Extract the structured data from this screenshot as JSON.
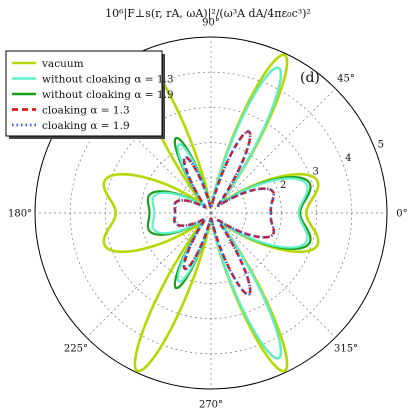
{
  "chart_data": {
    "type": "polar-line",
    "title": "10⁶|F⊥s(r, rA, ωA)|²/(ω³A dA/4πε₀c³)²",
    "panel_label": "(d)",
    "rlim": [
      0,
      5
    ],
    "r_ticks": [
      {
        "value": 1,
        "label": ""
      },
      {
        "value": 2,
        "label": "2"
      },
      {
        "value": 3,
        "label": "3"
      },
      {
        "value": 4,
        "label": "4"
      },
      {
        "value": 5,
        "label": "5"
      }
    ],
    "angle_ticks_deg": [
      0,
      45,
      90,
      135,
      180,
      225,
      270,
      315
    ],
    "angle_tick_labels": [
      "0°",
      "45°",
      "90°",
      "",
      "180°",
      "225°",
      "270°",
      "315°"
    ],
    "grid": true,
    "legend_position": "top-left",
    "series": [
      {
        "name": "vacuum",
        "color": "#b5d900",
        "style": "solid",
        "lobes": [
          {
            "angle": 0,
            "radius": 1.6,
            "width": 12
          },
          {
            "angle": 20,
            "radius": 2.5,
            "width": 11
          },
          {
            "angle": 65,
            "radius": 4.8,
            "width": 7
          },
          {
            "angle": 115,
            "radius": 4.8,
            "width": 7
          },
          {
            "angle": 160,
            "radius": 2.5,
            "width": 11
          },
          {
            "angle": 180,
            "radius": 1.6,
            "width": 12
          },
          {
            "angle": 200,
            "radius": 2.5,
            "width": 11
          },
          {
            "angle": 245,
            "radius": 4.8,
            "width": 7
          },
          {
            "angle": 295,
            "radius": 4.8,
            "width": 7
          },
          {
            "angle": 340,
            "radius": 2.5,
            "width": 11
          }
        ]
      },
      {
        "name": "without cloaking α = 1.3",
        "color": "#5ff0c8",
        "style": "solid",
        "lobes": [
          {
            "angle": 0,
            "radius": 1.5,
            "width": 12
          },
          {
            "angle": 20,
            "radius": 2.2,
            "width": 11
          },
          {
            "angle": 65,
            "radius": 4.4,
            "width": 7
          },
          {
            "angle": 115,
            "radius": 2.0,
            "width": 7
          },
          {
            "angle": 160,
            "radius": 1.2,
            "width": 11
          },
          {
            "angle": 180,
            "radius": 1.0,
            "width": 12
          },
          {
            "angle": 200,
            "radius": 1.2,
            "width": 11
          },
          {
            "angle": 245,
            "radius": 2.0,
            "width": 7
          },
          {
            "angle": 295,
            "radius": 4.4,
            "width": 7
          },
          {
            "angle": 340,
            "radius": 2.2,
            "width": 11
          }
        ]
      },
      {
        "name": "without cloaking α = 1.9",
        "color": "#1a9e1a",
        "style": "solid",
        "lobes": [
          {
            "angle": 0,
            "radius": 1.5,
            "width": 12
          },
          {
            "angle": 20,
            "radius": 2.3,
            "width": 11
          },
          {
            "angle": 65,
            "radius": 4.4,
            "width": 7
          },
          {
            "angle": 115,
            "radius": 2.2,
            "width": 7
          },
          {
            "angle": 160,
            "radius": 1.3,
            "width": 11
          },
          {
            "angle": 180,
            "radius": 1.1,
            "width": 12
          },
          {
            "angle": 200,
            "radius": 1.3,
            "width": 11
          },
          {
            "angle": 245,
            "radius": 2.2,
            "width": 7
          },
          {
            "angle": 295,
            "radius": 4.4,
            "width": 7
          },
          {
            "angle": 340,
            "radius": 2.3,
            "width": 11
          }
        ]
      },
      {
        "name": "cloaking α = 1.3",
        "color": "#e01515",
        "style": "dashed",
        "lobes": [
          {
            "angle": 0,
            "radius": 1.3,
            "width": 12
          },
          {
            "angle": 22,
            "radius": 1.4,
            "width": 10
          },
          {
            "angle": 65,
            "radius": 2.4,
            "width": 7
          },
          {
            "angle": 115,
            "radius": 1.6,
            "width": 7
          },
          {
            "angle": 160,
            "radius": 0.7,
            "width": 11
          },
          {
            "angle": 180,
            "radius": 0.6,
            "width": 12
          },
          {
            "angle": 200,
            "radius": 0.7,
            "width": 11
          },
          {
            "angle": 245,
            "radius": 1.6,
            "width": 7
          },
          {
            "angle": 295,
            "radius": 2.4,
            "width": 7
          },
          {
            "angle": 338,
            "radius": 1.4,
            "width": 10
          }
        ]
      },
      {
        "name": "cloaking α = 1.9",
        "color": "#3a5fe0",
        "style": "dotted",
        "lobes": [
          {
            "angle": 0,
            "radius": 1.3,
            "width": 12
          },
          {
            "angle": 22,
            "radius": 1.4,
            "width": 10
          },
          {
            "angle": 65,
            "radius": 2.4,
            "width": 7
          },
          {
            "angle": 115,
            "radius": 1.6,
            "width": 7
          },
          {
            "angle": 160,
            "radius": 0.7,
            "width": 11
          },
          {
            "angle": 180,
            "radius": 0.6,
            "width": 12
          },
          {
            "angle": 200,
            "radius": 0.7,
            "width": 11
          },
          {
            "angle": 245,
            "radius": 1.6,
            "width": 7
          },
          {
            "angle": 295,
            "radius": 2.4,
            "width": 7
          },
          {
            "angle": 338,
            "radius": 1.4,
            "width": 10
          }
        ]
      }
    ]
  }
}
